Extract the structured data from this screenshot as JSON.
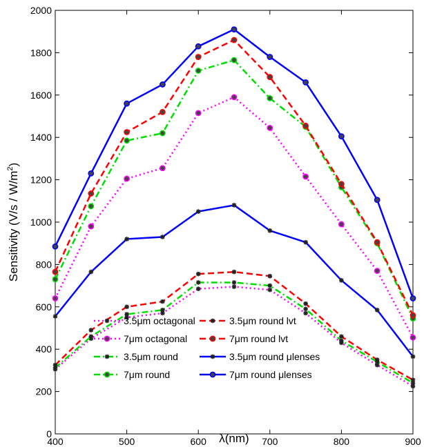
{
  "chart_data": {
    "type": "line",
    "x": [
      400,
      450,
      500,
      550,
      600,
      650,
      700,
      750,
      800,
      850,
      900
    ],
    "xlabel": "λ(nm)",
    "ylabel": "Sensitivity (V/s / W/m²)",
    "ylabel_parts": {
      "main": "Sensitivity (V/s / W/m",
      "sup": "2",
      "close": ")"
    },
    "xlim": [
      400,
      900
    ],
    "ylim": [
      0,
      2000
    ],
    "xticks": [
      "400",
      "500",
      "600",
      "700",
      "800",
      "900"
    ],
    "yticks": [
      "0",
      "200",
      "400",
      "600",
      "800",
      "1000",
      "1200",
      "1400",
      "1600",
      "1800",
      "2000"
    ],
    "grid": false,
    "legend_position": "bottom-center",
    "series": [
      {
        "name": "3.5μm octagonal",
        "color": "#ff00ff",
        "dash": "dotted",
        "marker": "star",
        "values": [
          305,
          450,
          550,
          570,
          685,
          695,
          680,
          570,
          430,
          325,
          225
        ]
      },
      {
        "name": "7μm octagonal",
        "color": "#ff00ff",
        "dash": "dotted",
        "marker": "circle",
        "values": [
          640,
          980,
          1205,
          1255,
          1515,
          1590,
          1445,
          1215,
          990,
          770,
          455
        ]
      },
      {
        "name": "3.5μm round",
        "color": "#00dd00",
        "dash": "dashdot",
        "marker": "star",
        "values": [
          312,
          460,
          565,
          585,
          715,
          715,
          700,
          590,
          440,
          340,
          240
        ]
      },
      {
        "name": "7μm round",
        "color": "#00dd00",
        "dash": "dashdot",
        "marker": "circle",
        "values": [
          730,
          1075,
          1385,
          1420,
          1715,
          1765,
          1585,
          1450,
          1165,
          900,
          545
        ]
      },
      {
        "name": "3.5μm round lvt",
        "color": "#ff0000",
        "dash": "dashed",
        "marker": "star",
        "values": [
          325,
          490,
          600,
          625,
          755,
          765,
          745,
          615,
          460,
          350,
          255
        ]
      },
      {
        "name": "7μm round lvt",
        "color": "#ff0000",
        "dash": "dashed",
        "marker": "circle",
        "values": [
          765,
          1135,
          1425,
          1520,
          1780,
          1860,
          1685,
          1455,
          1180,
          905,
          560
        ]
      },
      {
        "name": "3.5μm round μlenses",
        "color": "#0000ff",
        "dash": "solid",
        "marker": "star",
        "values": [
          555,
          765,
          920,
          930,
          1050,
          1080,
          960,
          905,
          725,
          585,
          365
        ]
      },
      {
        "name": "7μm round μlenses",
        "color": "#0000ff",
        "dash": "solid",
        "marker": "circle",
        "values": [
          885,
          1230,
          1560,
          1650,
          1830,
          1910,
          1780,
          1660,
          1405,
          1105,
          640
        ]
      }
    ]
  }
}
